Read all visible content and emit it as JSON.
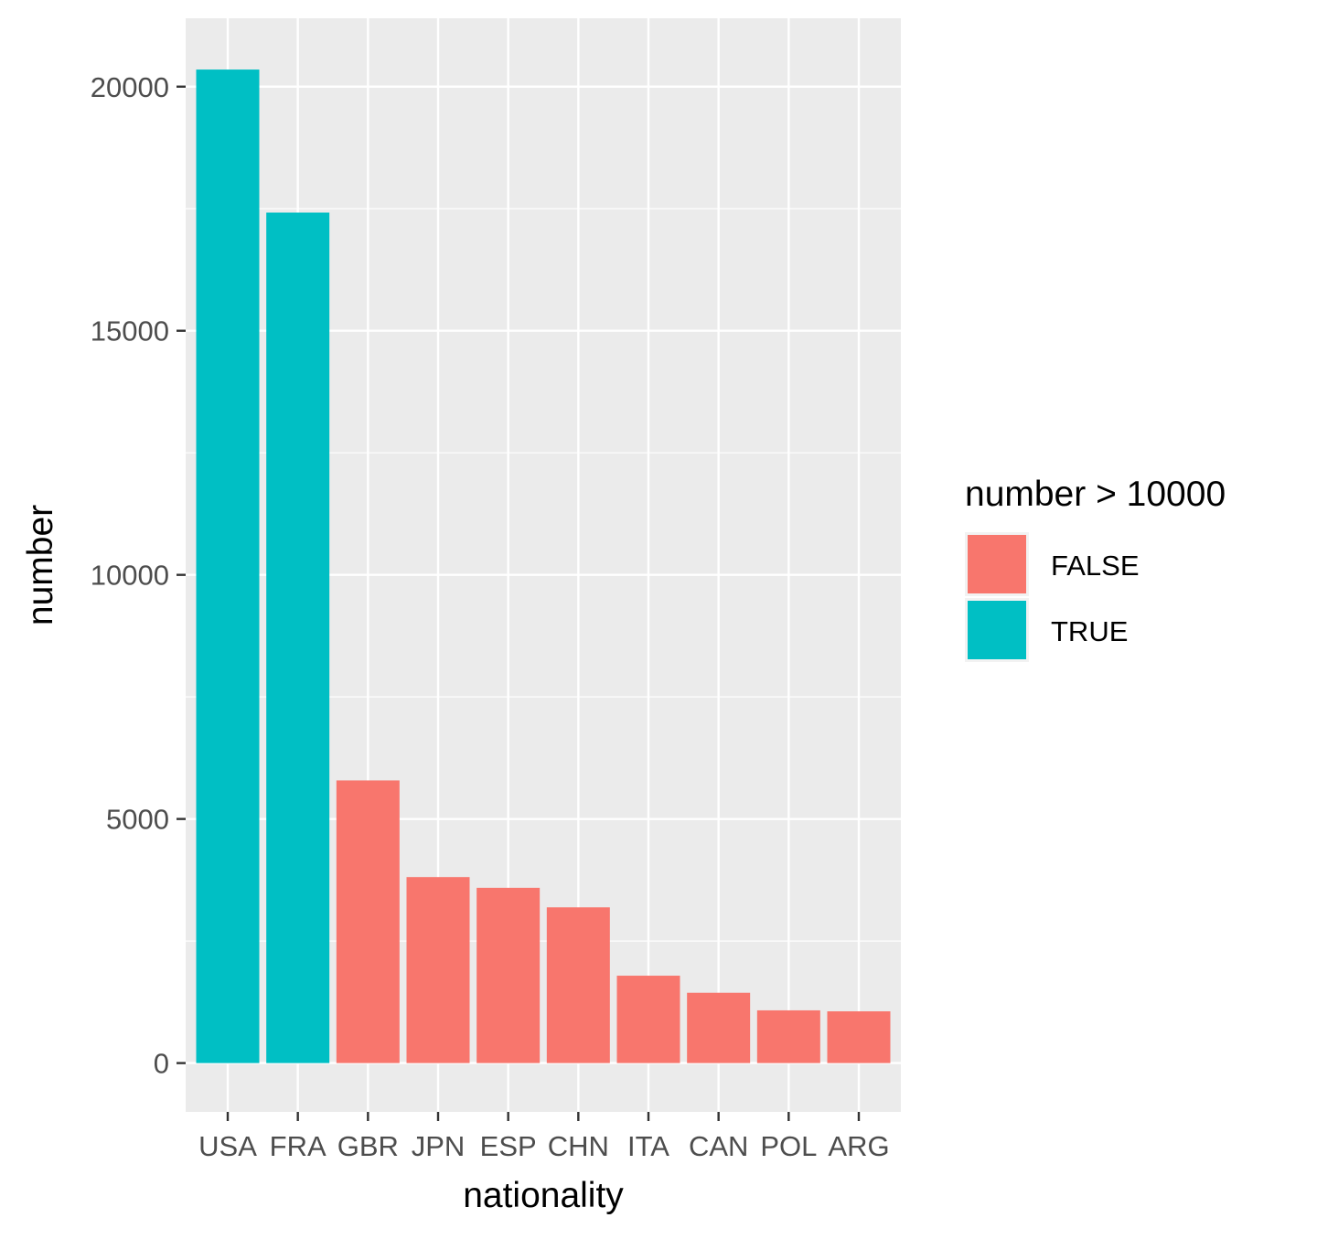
{
  "chart_data": {
    "type": "bar",
    "xlabel": "nationality",
    "ylabel": "number",
    "categories": [
      "USA",
      "FRA",
      "GBR",
      "JPN",
      "ESP",
      "CHN",
      "ITA",
      "CAN",
      "POL",
      "ARG"
    ],
    "values": [
      20350,
      17420,
      5790,
      3810,
      3590,
      3190,
      1790,
      1440,
      1080,
      1060
    ],
    "fill_group": [
      "TRUE",
      "TRUE",
      "FALSE",
      "FALSE",
      "FALSE",
      "FALSE",
      "FALSE",
      "FALSE",
      "FALSE",
      "FALSE"
    ],
    "y_ticks": [
      0,
      5000,
      10000,
      15000,
      20000
    ],
    "y_tick_labels": [
      "0",
      "5000",
      "10000",
      "15000",
      "20000"
    ],
    "ylim": [
      -1000,
      21400
    ],
    "grid": true,
    "panel_background": "#ebebeb",
    "grid_color": "#ffffff",
    "legend": {
      "title": "number > 10000",
      "placement": "right",
      "entries": [
        {
          "label": "FALSE",
          "color": "#f8766d"
        },
        {
          "label": "TRUE",
          "color": "#00bfc4"
        }
      ]
    }
  }
}
